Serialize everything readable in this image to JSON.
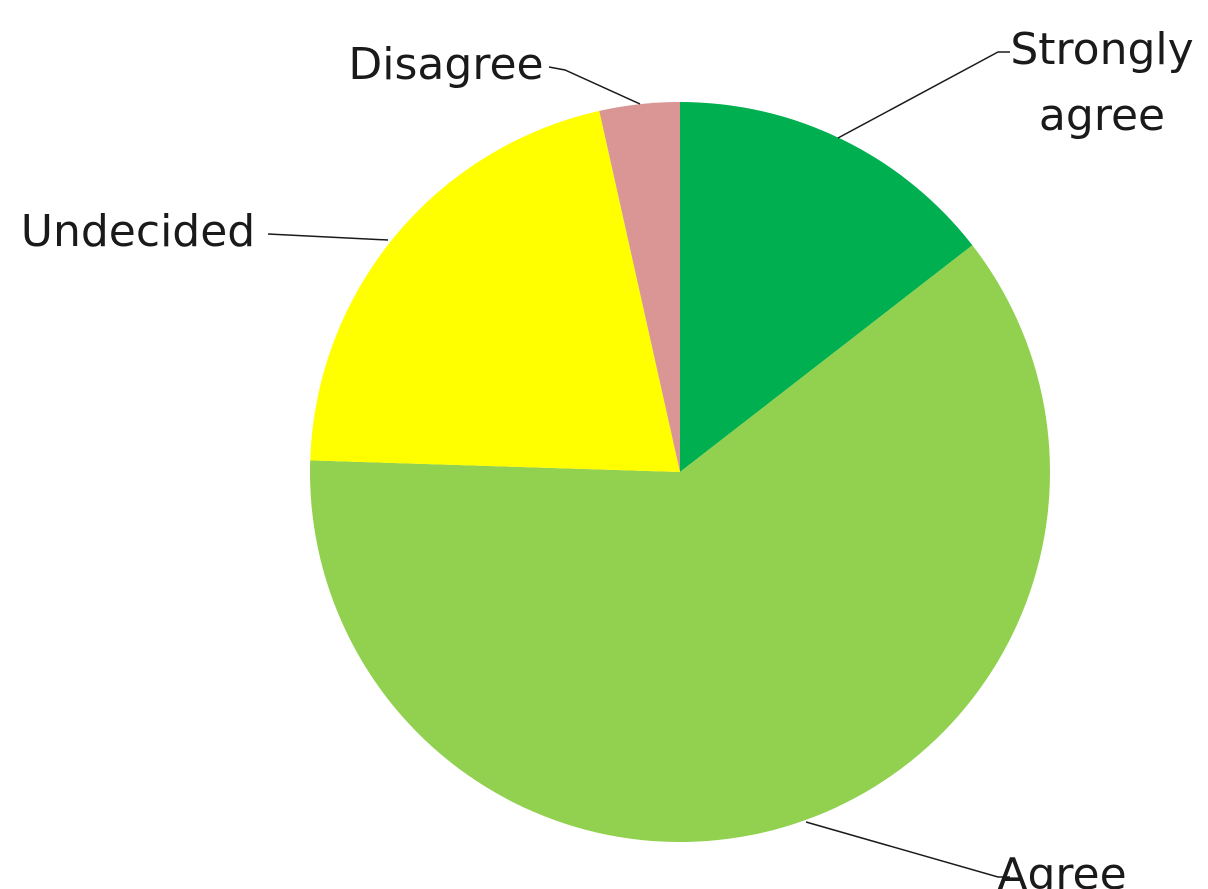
{
  "chart_data": {
    "type": "pie",
    "title": "",
    "start": "12 o'clock",
    "direction": "clockwise",
    "slices": [
      {
        "label": "Strongly agree",
        "value": 14.5,
        "color": "#00B050"
      },
      {
        "label": "Agree",
        "value": 61.0,
        "color": "#92D050"
      },
      {
        "label": "Undecided",
        "value": 21.0,
        "color": "#FFFF00"
      },
      {
        "label": "Disagree",
        "value": 3.5,
        "color": "#DA9694"
      }
    ],
    "legend": "none",
    "data_labels": "category names with leader lines"
  }
}
